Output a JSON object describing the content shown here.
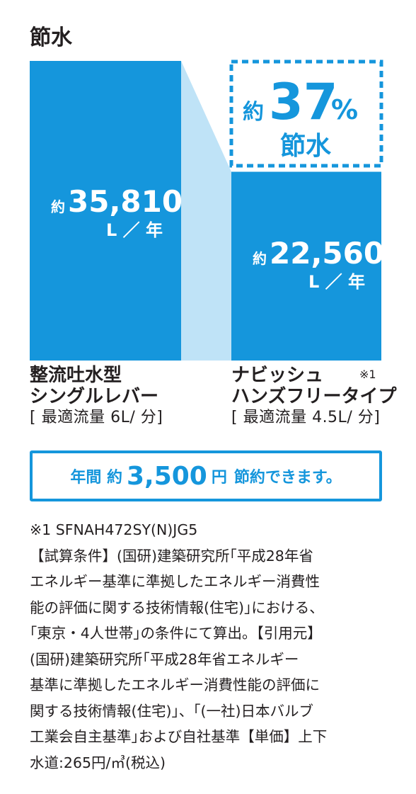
{
  "title": "節水",
  "chart_data": {
    "type": "bar",
    "categories": [
      "整流吐水型 シングルレバー",
      "ナビッシュ ハンズフリータイプ"
    ],
    "values": [
      35810,
      22560
    ],
    "unit": "L／年",
    "labels": [
      {
        "prefix": "約",
        "value": "35,810",
        "unit": "L ／ 年"
      },
      {
        "prefix": "約",
        "value": "22,560",
        "unit": "L ／ 年"
      }
    ],
    "annotation": {
      "prefix": "約",
      "value": "37",
      "percent": "%",
      "word": "節水"
    },
    "colors": {
      "bar": "#1596dc",
      "connector": "#bfe3f7",
      "text": "#231f20"
    }
  },
  "categories": [
    {
      "line1": "整流吐水型",
      "line2": "シングルレバー",
      "spec": "[ 最適流量 6L/ 分]"
    },
    {
      "line1": "ナビッシュ",
      "line2": "ハンズフリータイプ",
      "spec": "[ 最適流量 4.5L/ 分]",
      "note": "※1"
    }
  ],
  "savings": {
    "prefix": "年間 約",
    "amount": "3,500",
    "unit": "円",
    "suffix": "節約できます。"
  },
  "footnote": [
    "※1 SFNAH472SY(N)JG5",
    "【試算条件】(国研)建築研究所｢平成28年省",
    "エネルギー基準に準拠したエネルギー消費性",
    "能の評価に関する技術情報(住宅)｣における、",
    "｢東京・4人世帯｣の条件にて算出。【引用元】",
    "(国研)建築研究所｢平成28年省エネルギー",
    "基準に準拠したエネルギー消費性能の評価に",
    "関する技術情報(住宅)｣、｢(一社)日本バルブ",
    "工業会自主基準｣および自社基準【単価】上下",
    "水道:265円/㎥(税込)"
  ]
}
